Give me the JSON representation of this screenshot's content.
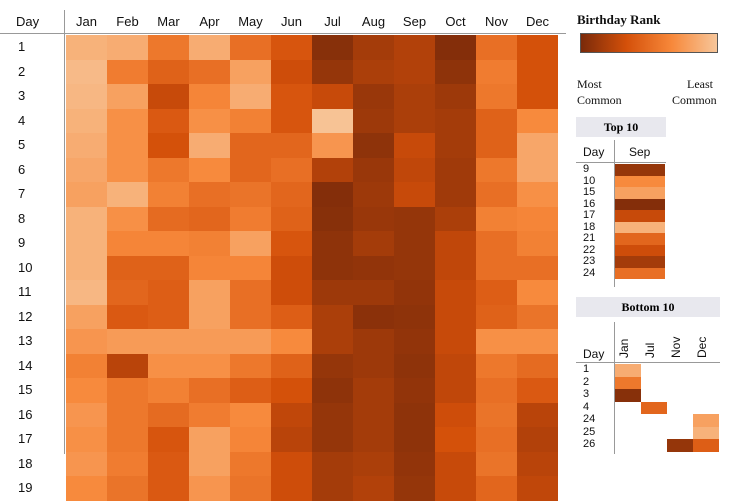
{
  "chart_data": {
    "type": "heatmap",
    "row_header": "Day",
    "columns": [
      "Jan",
      "Feb",
      "Mar",
      "Apr",
      "May",
      "Jun",
      "Jul",
      "Aug",
      "Sep",
      "Oct",
      "Nov",
      "Dec"
    ],
    "rows": [
      "1",
      "2",
      "3",
      "4",
      "5",
      "6",
      "7",
      "8",
      "9",
      "10",
      "11",
      "12",
      "13",
      "14",
      "15",
      "16",
      "17",
      "18",
      "19"
    ],
    "ranks": [
      [
        330,
        320,
        220,
        320,
        200,
        140,
        20,
        60,
        80,
        15,
        200,
        130
      ],
      [
        345,
        230,
        170,
        200,
        300,
        120,
        40,
        70,
        80,
        30,
        230,
        130
      ],
      [
        340,
        300,
        110,
        250,
        320,
        140,
        110,
        45,
        70,
        50,
        220,
        130
      ],
      [
        330,
        270,
        150,
        270,
        240,
        140,
        360,
        50,
        70,
        60,
        170,
        260
      ],
      [
        320,
        270,
        130,
        320,
        180,
        180,
        280,
        30,
        110,
        60,
        170,
        310
      ],
      [
        310,
        270,
        220,
        260,
        180,
        200,
        80,
        45,
        100,
        55,
        220,
        310
      ],
      [
        300,
        330,
        240,
        200,
        210,
        180,
        15,
        50,
        110,
        55,
        200,
        270
      ],
      [
        330,
        270,
        190,
        180,
        230,
        170,
        20,
        45,
        40,
        70,
        240,
        250
      ],
      [
        330,
        250,
        250,
        240,
        300,
        140,
        30,
        60,
        40,
        100,
        200,
        240
      ],
      [
        330,
        170,
        170,
        250,
        250,
        120,
        30,
        35,
        40,
        100,
        200,
        200
      ],
      [
        340,
        180,
        160,
        300,
        200,
        120,
        50,
        50,
        35,
        110,
        160,
        260
      ],
      [
        300,
        150,
        160,
        300,
        200,
        160,
        70,
        25,
        30,
        110,
        170,
        210
      ],
      [
        280,
        290,
        290,
        290,
        290,
        260,
        70,
        50,
        35,
        110,
        270,
        270
      ],
      [
        240,
        90,
        270,
        270,
        220,
        170,
        40,
        50,
        30,
        100,
        220,
        190
      ],
      [
        260,
        220,
        240,
        200,
        160,
        130,
        30,
        60,
        35,
        100,
        200,
        150
      ],
      [
        280,
        220,
        190,
        230,
        260,
        100,
        40,
        60,
        30,
        120,
        210,
        90
      ],
      [
        270,
        220,
        140,
        300,
        250,
        90,
        40,
        60,
        30,
        130,
        200,
        80
      ],
      [
        280,
        230,
        150,
        300,
        220,
        120,
        60,
        70,
        35,
        110,
        210,
        90
      ],
      [
        260,
        210,
        150,
        280,
        210,
        120,
        60,
        80,
        40,
        110,
        180,
        100
      ]
    ],
    "legend": {
      "title": "Birthday  Rank",
      "low_label_1": "Most",
      "low_label_2": "Common",
      "high_label_1": "Least",
      "high_label_2": "Common"
    },
    "top10": {
      "title": "Top 10",
      "col_day": "Day",
      "col_month": "Sep",
      "days": [
        "9",
        "10",
        "15",
        "16",
        "17",
        "18",
        "21",
        "22",
        "23",
        "24"
      ],
      "ranks": [
        40,
        260,
        300,
        15,
        110,
        330,
        180,
        120,
        60,
        200
      ]
    },
    "bottom10": {
      "title": "Bottom 10",
      "col_day": "Day",
      "months": [
        "Jan",
        "Jul",
        "Nov",
        "Dec"
      ],
      "days": [
        "1",
        "2",
        "3",
        "4",
        "24",
        "25",
        "26"
      ],
      "cells": [
        [
          320,
          null,
          null,
          null
        ],
        [
          220,
          null,
          null,
          null
        ],
        [
          20,
          null,
          null,
          null
        ],
        [
          null,
          180,
          null,
          null
        ],
        [
          null,
          null,
          null,
          300
        ],
        [
          null,
          null,
          null,
          330
        ],
        [
          null,
          null,
          40,
          160
        ]
      ]
    }
  }
}
